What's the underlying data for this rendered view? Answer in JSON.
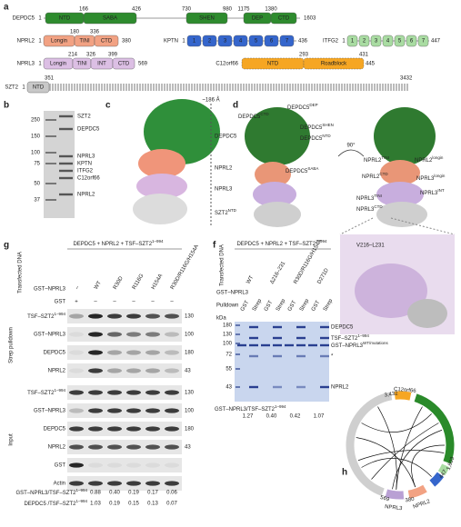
{
  "panel_labels": [
    "a",
    "b",
    "c",
    "d",
    "e",
    "f",
    "g",
    "h"
  ],
  "a": {
    "proteins": [
      {
        "name": "DEPDC5",
        "start": "1",
        "end": "1603",
        "boundaries": [
          "166",
          "426",
          "730",
          "980",
          "1175",
          "1380"
        ],
        "domains": [
          "NTD",
          "SABA",
          "SHEN",
          "DEP",
          "CTD"
        ]
      },
      {
        "name": "NPRL2",
        "start": "1",
        "end": "380",
        "boundaries": [
          "180",
          "336"
        ],
        "domains": [
          "Longin",
          "TINI",
          "CTD"
        ]
      },
      {
        "name": "NPRL3",
        "start": "1",
        "end": "569",
        "boundaries": [
          "214",
          "326",
          "399"
        ],
        "domains": [
          "Longin",
          "TINI",
          "INT",
          "CTD"
        ]
      },
      {
        "name": "SZT2",
        "start": "1",
        "end": "3432",
        "boundaries": [
          "351"
        ],
        "domains": [
          "NTD"
        ]
      },
      {
        "name": "KPTN",
        "start": "1",
        "end": "436",
        "domains": [
          "1",
          "2",
          "3",
          "4",
          "5",
          "6",
          "7"
        ]
      },
      {
        "name": "ITFG2",
        "start": "1",
        "end": "447",
        "domains": [
          "1",
          "2",
          "3",
          "4",
          "5",
          "6",
          "7"
        ]
      },
      {
        "name": "C12orf66",
        "end": "445",
        "boundaries": [
          "293",
          "431"
        ],
        "domains": [
          "NTD",
          "Roadblock"
        ]
      }
    ]
  },
  "b": {
    "markers": [
      "250",
      "150",
      "100",
      "75",
      "50",
      "37"
    ],
    "bands": [
      "SZT2",
      "DEPDC5",
      "NPRL3",
      "KPTN",
      "ITFG2",
      "C12orf66",
      "NPRL2"
    ]
  },
  "c": {
    "scale": "~186 Å",
    "labels": [
      "DEPDC5",
      "NPRL2",
      "NPRL3",
      {
        "text": "SZT2",
        "sup": "NTD"
      }
    ]
  },
  "d": {
    "rotation": "90°",
    "labels": [
      {
        "text": "DEPDC5",
        "sup": "DEP"
      },
      {
        "text": "DEPDC5",
        "sup": "CTD"
      },
      {
        "text": "DEPDC5",
        "sup": "SHEN"
      },
      {
        "text": "DEPDC5",
        "sup": "NTD"
      },
      {
        "text": "DEPDC5",
        "sup": "SABA"
      },
      {
        "text": "NPRL2",
        "sup": "TINI"
      },
      {
        "text": "NPRL2",
        "sup": "longin"
      },
      {
        "text": "NPRL2",
        "sup": "CTD"
      },
      {
        "text": "NPRL3",
        "sup": "longin"
      },
      {
        "text": "NPRL3",
        "sup": "TINI"
      },
      {
        "text": "NPRL3",
        "sup": "CTD"
      },
      {
        "text": "NPRL3",
        "sup": "INT"
      }
    ]
  },
  "e": {
    "region": "V216–L231"
  },
  "g": {
    "title": {
      "text": "DEPDC5 + NPRL2 + TSF–SZT2",
      "sup": "1–994"
    },
    "transfected": "Transfected DNA",
    "conditions": [
      {
        "name": "GST–NPRL3",
        "lanes": [
          "–",
          "WT",
          "R30D",
          "R116G",
          "H154A",
          "R30D/R116G/H154A"
        ]
      },
      {
        "name": "GST",
        "lanes": [
          "+",
          "–",
          "–",
          "–",
          "–",
          "–"
        ]
      }
    ],
    "sections": [
      {
        "name": "Strep pulldown",
        "blots": [
          {
            "target": {
              "text": "TSF–SZT2",
              "sup": "1–994"
            },
            "kda": "130"
          },
          {
            "target": "GST–NPRL3",
            "kda": "100"
          },
          {
            "target": "DEPDC5",
            "kda": "180"
          },
          {
            "target": "NPRL2",
            "kda": "43"
          }
        ]
      },
      {
        "name": "Input",
        "blots": [
          {
            "target": {
              "text": "TSF–SZT2",
              "sup": "1–994"
            },
            "kda": "130"
          },
          {
            "target": "GST–NPRL3",
            "kda": "100"
          },
          {
            "target": "DEPDC5",
            "kda": "180"
          },
          {
            "target": "NPRL2",
            "kda": "43"
          },
          {
            "target": "GST"
          },
          {
            "target": "Actin"
          }
        ]
      }
    ],
    "quantification": [
      {
        "label": {
          "text": "GST–NPRL3/TSF–SZT2",
          "sup": "1–994"
        },
        "values": [
          "0.88",
          "0.40",
          "0.19",
          "0.17",
          "0.06"
        ]
      },
      {
        "label": {
          "text": "DEPDC5 /TSF–SZT2",
          "sup": "1–994"
        },
        "values": [
          "1.03",
          "0.19",
          "0.15",
          "0.13",
          "0.07"
        ]
      }
    ]
  },
  "f": {
    "title": {
      "text": "DEPDC5 + NPRL2 + TSF–SZT2",
      "sup": "1–994"
    },
    "transfected": "Transfected DNA",
    "construct": "GST–NPRL3",
    "variants": [
      "WT",
      "Δ216–231",
      "R30D/R116G/H154A",
      "D271D"
    ],
    "pulldown": "Pulldown",
    "lanes": [
      "GST",
      "Strep",
      "GST",
      "Strep",
      "GST",
      "Strep",
      "GST",
      "Strep"
    ],
    "kda_label": "kDa",
    "markers": [
      "180",
      "130",
      "100",
      "72",
      "55",
      "43"
    ],
    "bands": [
      "DEPDC5",
      {
        "text": "TSF–SZT2",
        "sup": "1–994"
      },
      {
        "text": "GST–NPRL3",
        "sup": "WT/mutations"
      },
      "*",
      "NPRL2"
    ],
    "quantification": {
      "label": {
        "text": "GST–NPRL3/TSF–SZT2",
        "sup": "1–994"
      },
      "values": [
        "1.27",
        "0.40",
        "0.42",
        "1.07"
      ]
    }
  },
  "h": {
    "labels": [
      "3,432",
      "C12orf66",
      "1,603",
      "447",
      "NPRL2",
      "380",
      "NPRL3",
      "569"
    ]
  }
}
